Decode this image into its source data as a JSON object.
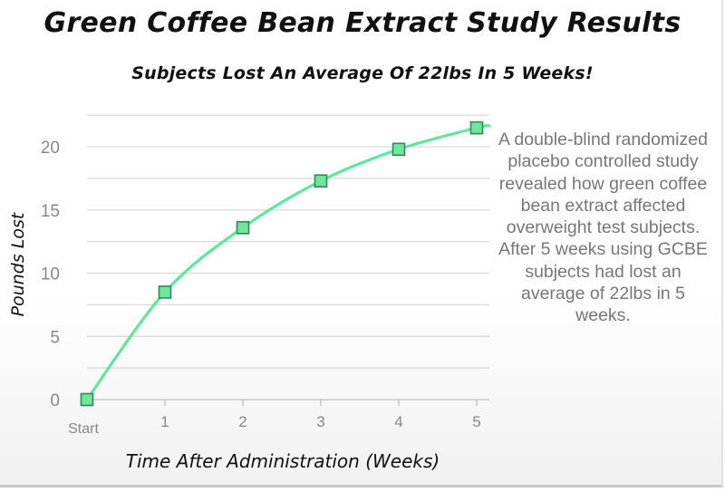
{
  "chart_data": {
    "type": "line",
    "title": "Green Coffee Bean Extract Study Results",
    "subtitle": "Subjects Lost An Average Of 22lbs In 5 Weeks!",
    "xlabel": "Time After Administration (Weeks)",
    "ylabel": "Pounds Lost",
    "x_tick_labels": [
      "Start",
      "1",
      "2",
      "3",
      "4",
      "5"
    ],
    "y_tick_labels": [
      "0",
      "5",
      "10",
      "15",
      "20"
    ],
    "x": [
      0,
      1,
      2,
      3,
      4,
      5
    ],
    "values": [
      0,
      8.5,
      13.6,
      17.3,
      19.8,
      21.5
    ],
    "ylim": [
      0,
      22.5
    ],
    "xlim": [
      0,
      5.15
    ],
    "grid": true,
    "legend": "none",
    "line_color": "#5ee89a",
    "marker_color": "#6fe6a0",
    "marker_border": "#2f8a56",
    "grid_color": "#d9d9d9"
  },
  "side_note": "A double-blind randomized placebo controlled study revealed how green coffee bean extract affected overweight test subjects. After 5 weeks using GCBE subjects had lost an average of 22lbs in 5 weeks."
}
